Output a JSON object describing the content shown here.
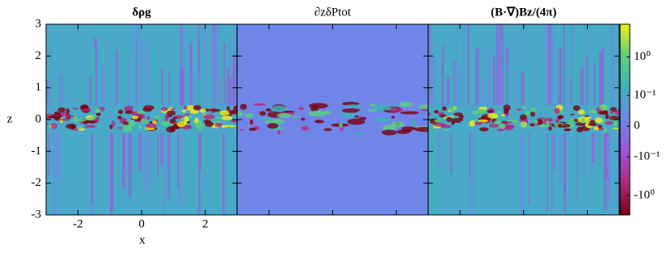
{
  "chart_data": {
    "type": "heatmap",
    "panels": [
      {
        "title": "δρg"
      },
      {
        "title": "∂zδPtot"
      },
      {
        "title": "(B·∇)Bz/(4π)"
      }
    ],
    "xlabel": "x",
    "ylabel": "z",
    "xlim": [
      -3,
      3
    ],
    "xticks": [
      -2,
      0,
      2
    ],
    "ylim": [
      -3,
      3
    ],
    "yticks": [
      -3,
      -2,
      -1,
      0,
      1,
      2,
      3
    ],
    "colorbar": {
      "scale": "symlog",
      "linthresh": 0.1,
      "lim": [
        -3.2,
        7
      ],
      "ticks": [
        {
          "value": 1,
          "label": "10⁰"
        },
        {
          "value": 0.1,
          "label": "10⁻¹"
        },
        {
          "value": 0,
          "label": "0"
        },
        {
          "value": -0.1,
          "label": "-10⁻¹"
        },
        {
          "value": -1,
          "label": "-10⁰"
        }
      ],
      "colors": [
        "#7a0010",
        "#b0287e",
        "#9a56d8",
        "#6f86e8",
        "#3cb4b8",
        "#5ad27a",
        "#f2f018"
      ]
    }
  }
}
